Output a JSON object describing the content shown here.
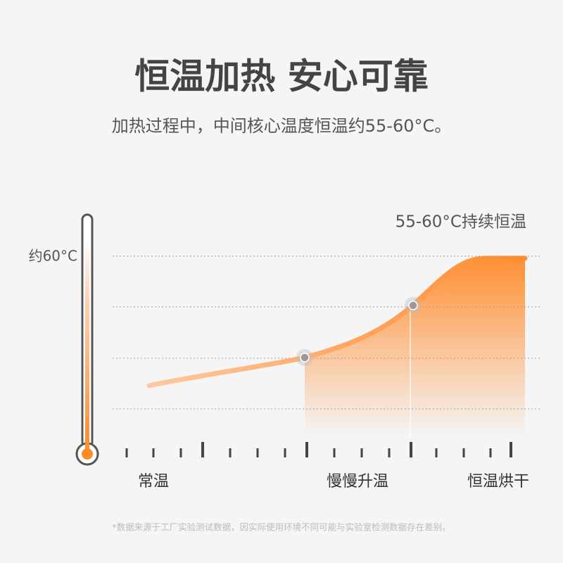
{
  "header": {
    "title": "恒温加热 安心可靠",
    "subtitle": "加热过程中，中间核心温度恒温约55-60°C。"
  },
  "diagram": {
    "annotation": "55-60°C持续恒温",
    "thermometer_label": "约60°C",
    "stages": [
      "常温",
      "慢慢升温",
      "恒温烘干"
    ]
  },
  "footnote": "*数据来源于工厂实验测试数据，因实际使用环境不同可能与实验室检测数据存在差别。"
}
